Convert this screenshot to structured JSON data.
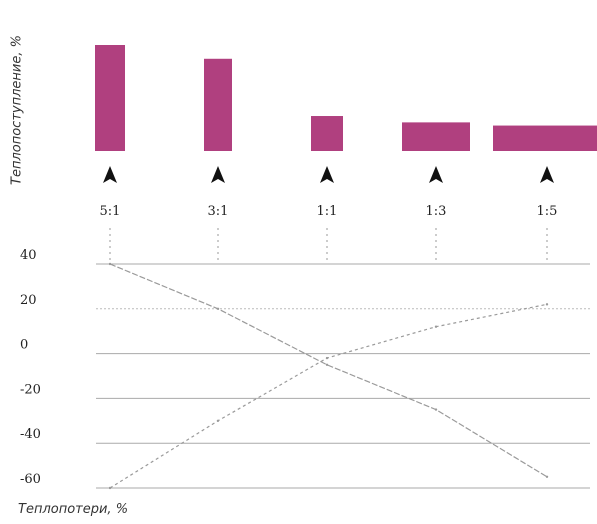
{
  "chart_data": {
    "type": "bar",
    "ratios": [
      "5:1",
      "3:1",
      "1:1",
      "1:3",
      "1:5"
    ],
    "top_chart": {
      "type": "bar",
      "ylabel": "Теплопоступление, %",
      "values": [
        100,
        87,
        33,
        27,
        24
      ],
      "color": "#b0407f"
    },
    "bottom_chart": {
      "type": "line",
      "xlabel": "Теплопотери, %",
      "yticks": [
        "40",
        "20",
        "0",
        "-20",
        "-40",
        "-60"
      ],
      "ylim": [
        -60,
        40
      ],
      "series": [
        {
          "values": [
            40,
            20,
            -5,
            -25,
            -55
          ]
        },
        {
          "values": [
            -60,
            -30,
            -2,
            12,
            22
          ]
        }
      ],
      "line_color": "#9a9a9a",
      "grid": true
    }
  }
}
